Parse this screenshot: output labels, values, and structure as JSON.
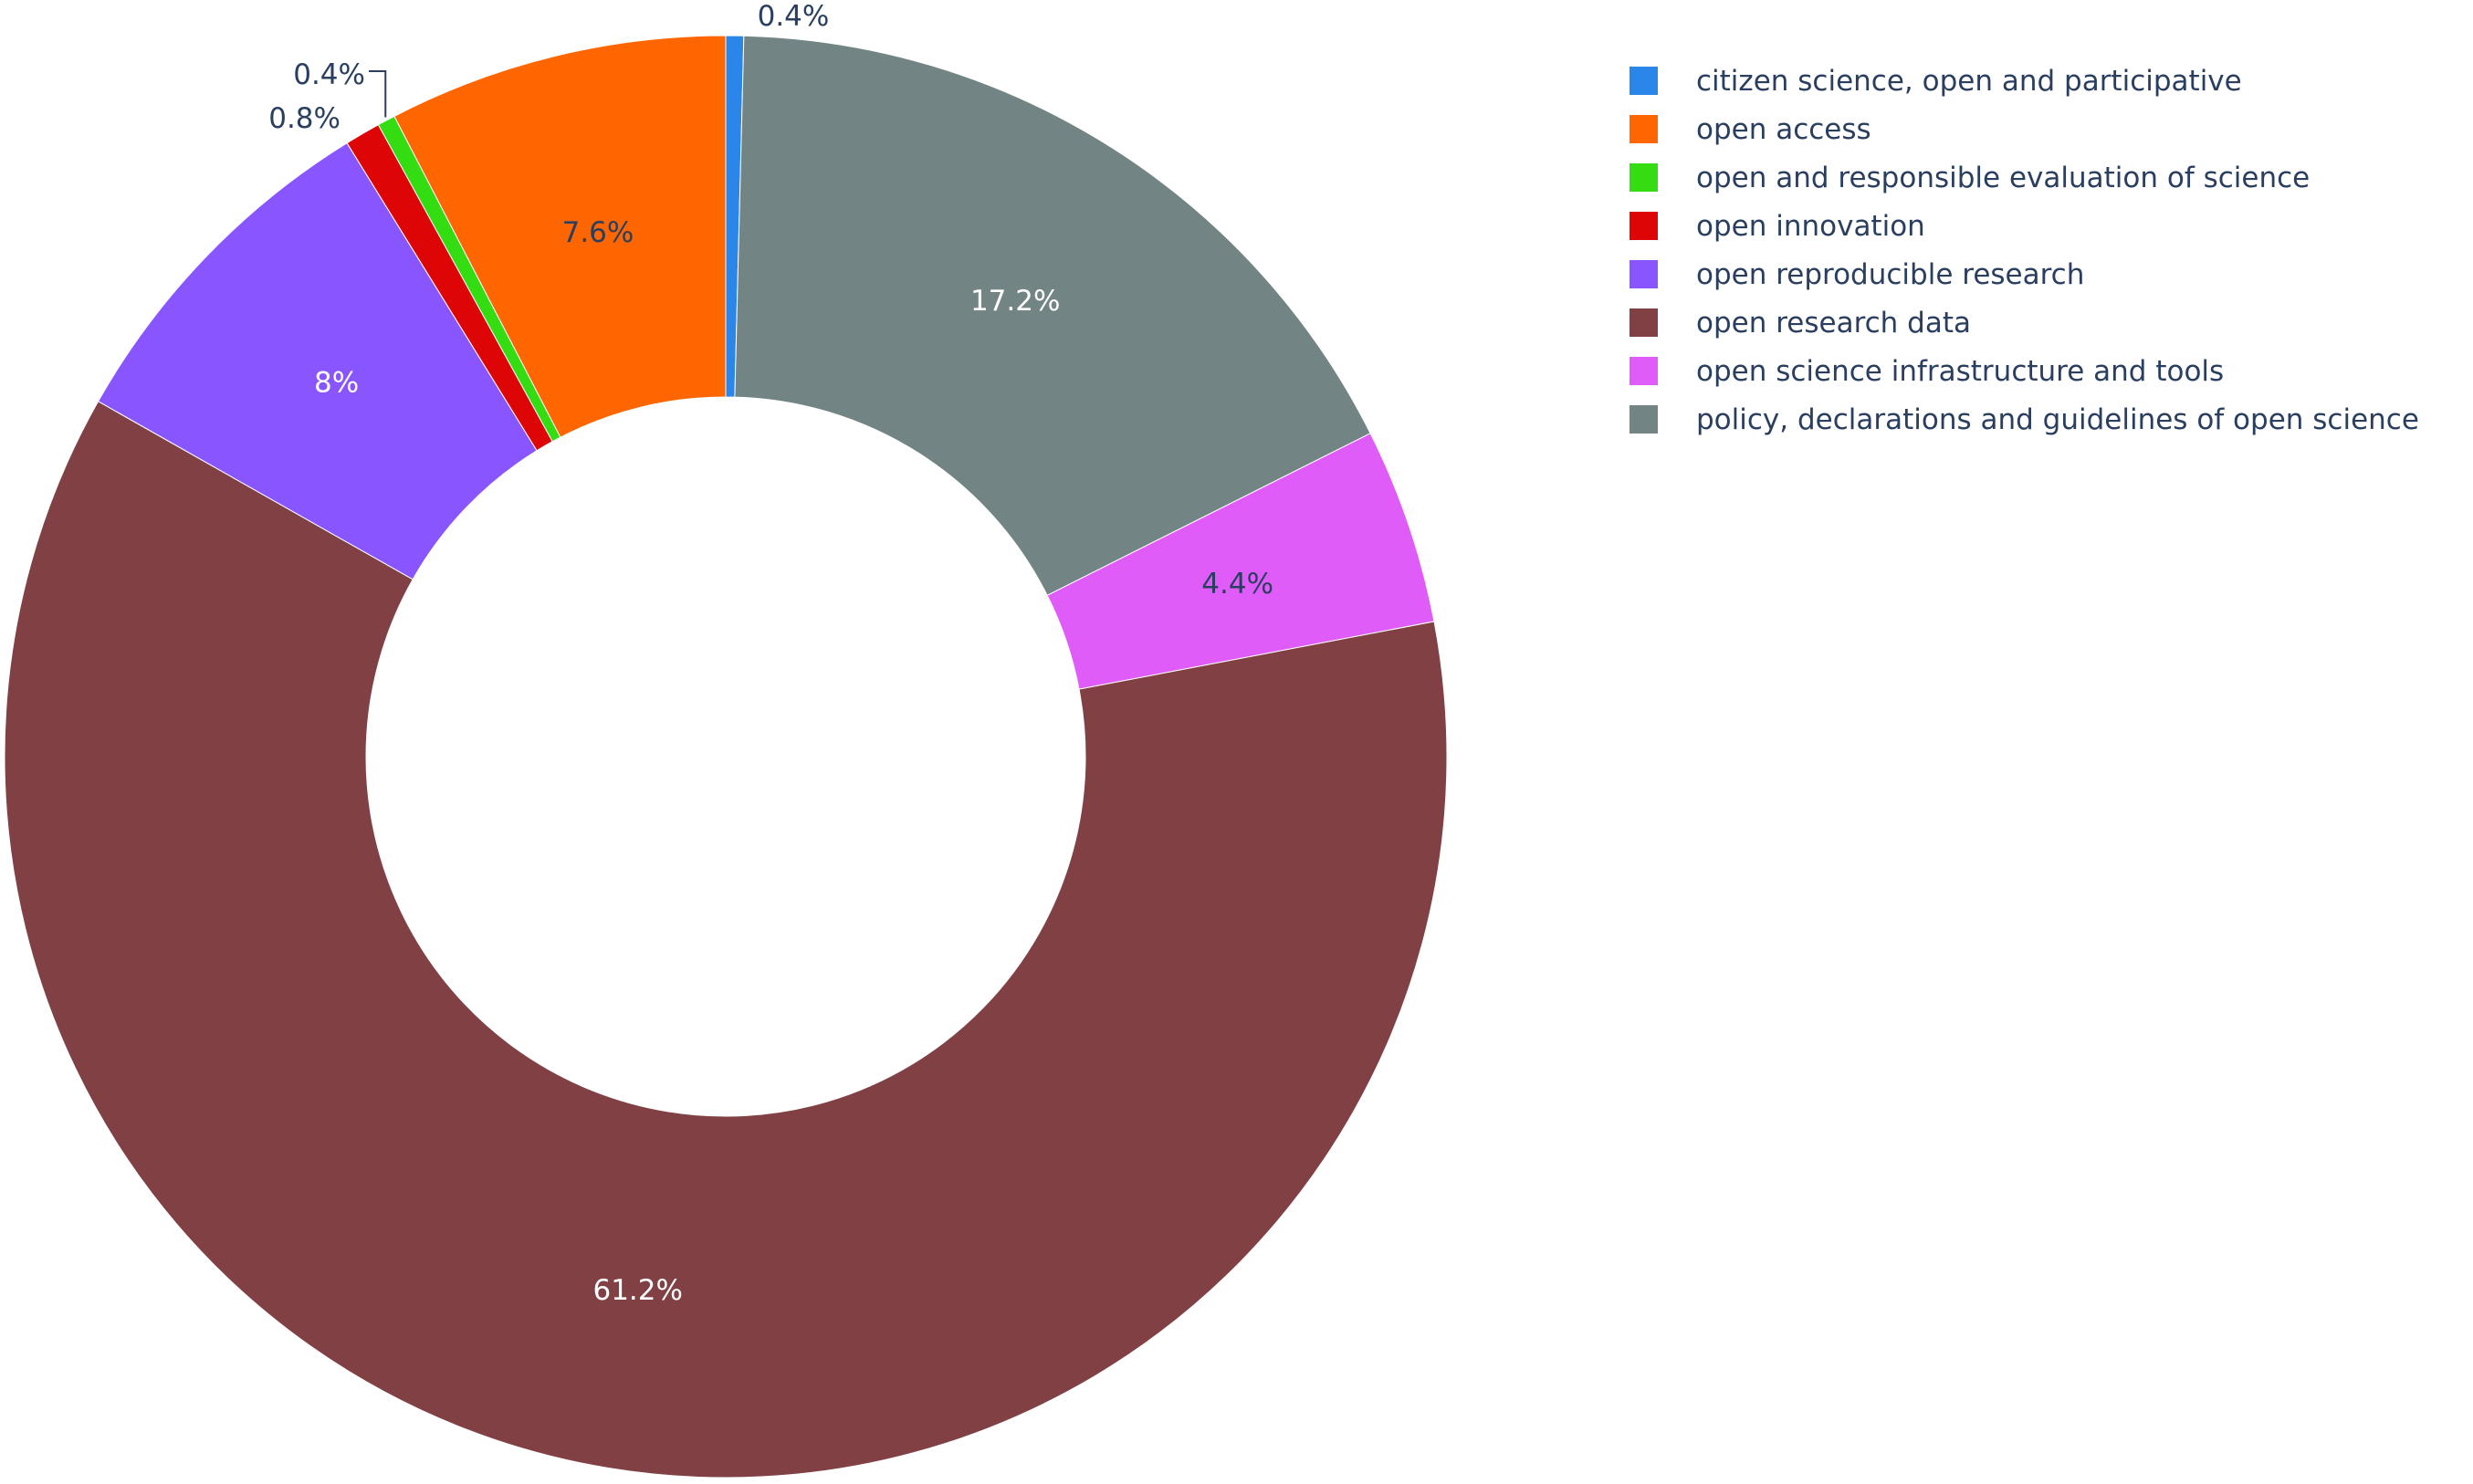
{
  "chart_data": {
    "type": "pie",
    "hole": true,
    "direction": "clockwise-from-top",
    "slices": [
      {
        "label": "citizen science, open and participative",
        "value": 0.4,
        "text": "0.4%",
        "color": "#2b86e9",
        "text_color": "#2a3f5f",
        "outside": true
      },
      {
        "label": "policy, declarations and guidelines of open science",
        "value": 17.2,
        "text": "17.2%",
        "color": "#738484",
        "text_color": "#ffffff",
        "outside": false
      },
      {
        "label": "open science infrastructure and tools",
        "value": 4.4,
        "text": "4.4%",
        "color": "#e05cf8",
        "text_color": "#2a3f5f",
        "outside": false
      },
      {
        "label": "open research data",
        "value": 61.2,
        "text": "61.2%",
        "color": "#804044",
        "text_color": "#ffffff",
        "outside": false
      },
      {
        "label": "open reproducible research",
        "value": 8,
        "text": "8%",
        "color": "#8855fe",
        "text_color": "#ffffff",
        "outside": false
      },
      {
        "label": "open innovation",
        "value": 0.8,
        "text": "0.8%",
        "color": "#dd0505",
        "text_color": "#2a3f5f",
        "outside": true
      },
      {
        "label": "open and responsible evaluation of science",
        "value": 0.4,
        "text": "0.4%",
        "color": "#33dd11",
        "text_color": "#2a3f5f",
        "outside": true
      },
      {
        "label": "open access",
        "value": 7.6,
        "text": "7.6%",
        "color": "#ff6600",
        "text_color": "#2a3f5f",
        "outside": false
      }
    ],
    "legend": {
      "placement": "top-right",
      "items": [
        {
          "label": "citizen science, open and participative",
          "color": "#2b86e9"
        },
        {
          "label": "open access",
          "color": "#ff6600"
        },
        {
          "label": "open and responsible evaluation of science",
          "color": "#33dd11"
        },
        {
          "label": "open innovation",
          "color": "#dd0505"
        },
        {
          "label": "open reproducible research",
          "color": "#8855fe"
        },
        {
          "label": "open research data",
          "color": "#804044"
        },
        {
          "label": "open science infrastructure and tools",
          "color": "#e05cf8"
        },
        {
          "label": "policy, declarations and guidelines of open science",
          "color": "#738484"
        }
      ]
    }
  }
}
